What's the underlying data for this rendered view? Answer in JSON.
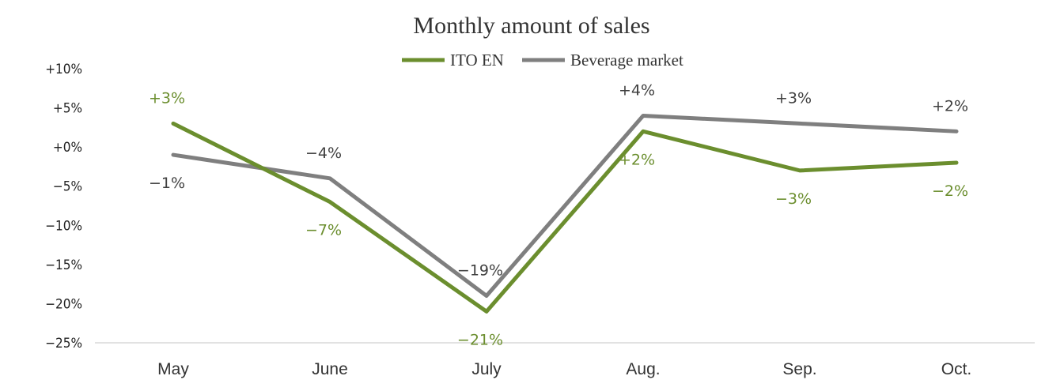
{
  "chart_data": {
    "type": "line",
    "title": "Monthly amount of sales",
    "categories": [
      "May",
      "June",
      "July",
      "Aug.",
      "Sep.",
      "Oct."
    ],
    "ylim": [
      -25,
      10
    ],
    "yticks": [
      10,
      5,
      0,
      -5,
      -10,
      -15,
      -20,
      -25
    ],
    "ytick_labels": [
      "+10%",
      "+5%",
      "+0%",
      "−5%",
      "−10%",
      "−15%",
      "−20%",
      "−25%"
    ],
    "grid": false,
    "legend_position": "top-center",
    "series": [
      {
        "name": "ITO EN",
        "color": "#6B8E2E",
        "values": [
          3,
          -7,
          -21,
          2,
          -3,
          -2
        ],
        "labels": [
          "+3%",
          "−7%",
          "−21%",
          "+2%",
          "−3%",
          "−2%"
        ]
      },
      {
        "name": "Beverage market",
        "color": "#7F7F7F",
        "values": [
          -1,
          -4,
          -19,
          4,
          3,
          2
        ],
        "labels": [
          "−1%",
          "−4%",
          "−19%",
          "+4%",
          "+3%",
          "+2%"
        ]
      }
    ]
  }
}
